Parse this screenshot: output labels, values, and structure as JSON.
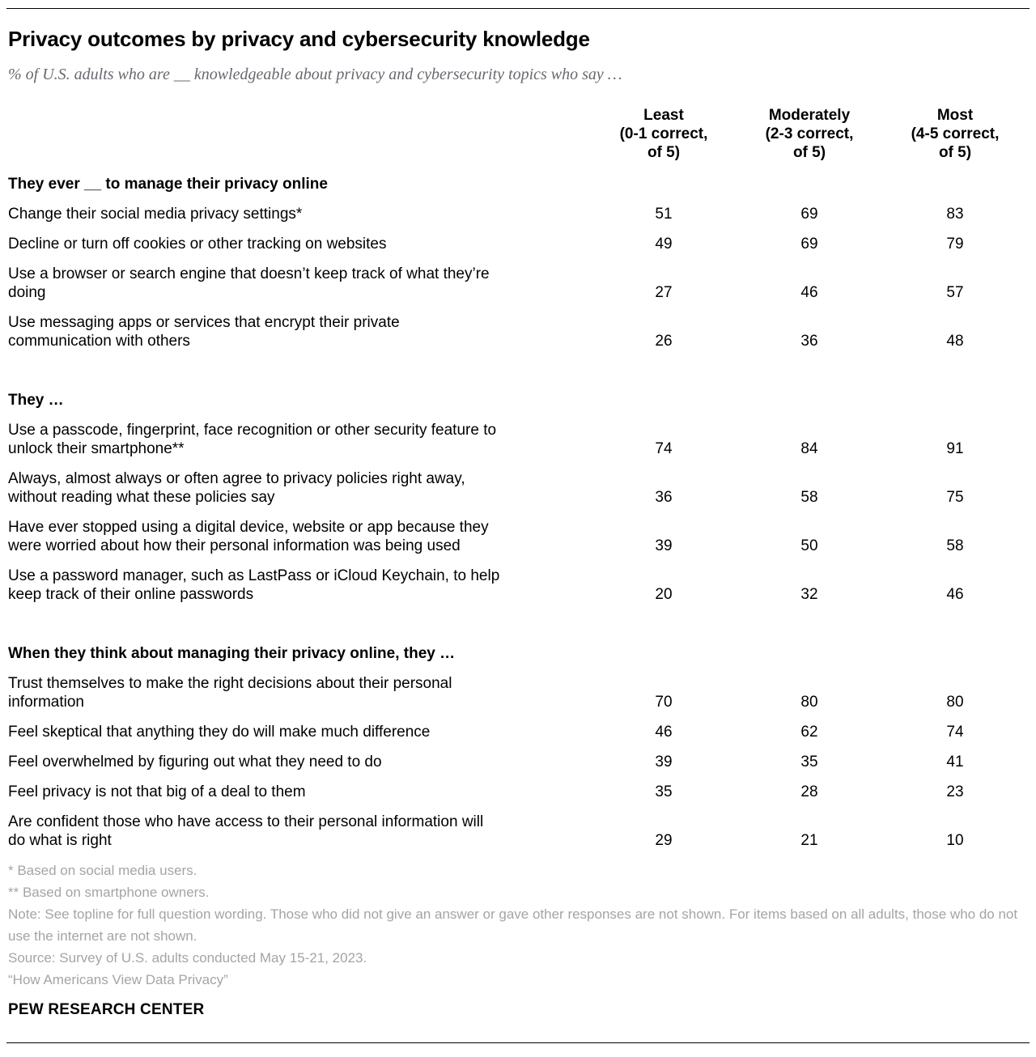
{
  "header": {
    "title": "Privacy outcomes by privacy and cybersecurity knowledge",
    "subtitle": "% of U.S. adults who are __ knowledgeable about privacy and cybersecurity topics who say …"
  },
  "chart_data": {
    "type": "table",
    "title": "Privacy outcomes by privacy and cybersecurity knowledge",
    "subtitle": "% of U.S. adults who are __ knowledgeable about privacy and cybersecurity topics who say …",
    "columns": [
      "Least\n(0-1 correct,\nof 5)",
      "Moderately\n(2-3 correct,\nof 5)",
      "Most\n(4-5 correct,\nof 5)"
    ],
    "sections": [
      {
        "heading": "They ever __ to manage their privacy online",
        "rows": [
          {
            "label": "Change their social media privacy settings*",
            "values": [
              51,
              69,
              83
            ]
          },
          {
            "label": "Decline or turn off cookies or other tracking on websites",
            "values": [
              49,
              69,
              79
            ]
          },
          {
            "label": "Use a browser or search engine that doesn’t keep track of what they’re\ndoing",
            "values": [
              27,
              46,
              57
            ]
          },
          {
            "label": "Use messaging apps or services that encrypt their private\ncommunication with others",
            "values": [
              26,
              36,
              48
            ]
          }
        ]
      },
      {
        "heading": "They …",
        "rows": [
          {
            "label": "Use a passcode, fingerprint, face recognition or other security feature to\nunlock their smartphone**",
            "values": [
              74,
              84,
              91
            ]
          },
          {
            "label": "Always, almost always or often agree to privacy policies right away,\nwithout reading what these policies say",
            "values": [
              36,
              58,
              75
            ]
          },
          {
            "label": "Have ever stopped using a digital device, website or app because they\nwere worried about how their personal information was being used",
            "values": [
              39,
              50,
              58
            ]
          },
          {
            "label": "Use a password manager, such as LastPass or iCloud Keychain, to help\nkeep track of their online passwords",
            "values": [
              20,
              32,
              46
            ]
          }
        ]
      },
      {
        "heading": "When they think about managing their privacy online, they …",
        "rows": [
          {
            "label": "Trust themselves to make the right decisions about their personal\ninformation",
            "values": [
              70,
              80,
              80
            ]
          },
          {
            "label": "Feel skeptical that anything they do will make much difference",
            "values": [
              46,
              62,
              74
            ]
          },
          {
            "label": "Feel overwhelmed by figuring out what they need to do",
            "values": [
              39,
              35,
              41
            ]
          },
          {
            "label": "Feel privacy is not that big of a deal to them",
            "values": [
              35,
              28,
              23
            ]
          },
          {
            "label": "Are confident those who have access to their personal information will\ndo what is right",
            "values": [
              29,
              21,
              10
            ]
          }
        ]
      }
    ],
    "layout": {
      "grid": false,
      "values_unit": "%"
    }
  },
  "footer": {
    "notes": [
      "* Based on social media users.",
      "** Based on smartphone owners.",
      "Note: See topline for full question wording. Those who did not give an answer or gave other responses are not shown. For items based on all adults, those who do not use the internet are not shown.",
      "Source: Survey of U.S. adults conducted May 15-21, 2023.",
      "“How Americans View Data Privacy”"
    ],
    "branding": "PEW RESEARCH CENTER"
  },
  "colors": {
    "text": "#000000",
    "subtitle_gray": "#66696e",
    "notes_gray": "#a2a5a7",
    "rule": "#000000",
    "background": "#ffffff"
  }
}
